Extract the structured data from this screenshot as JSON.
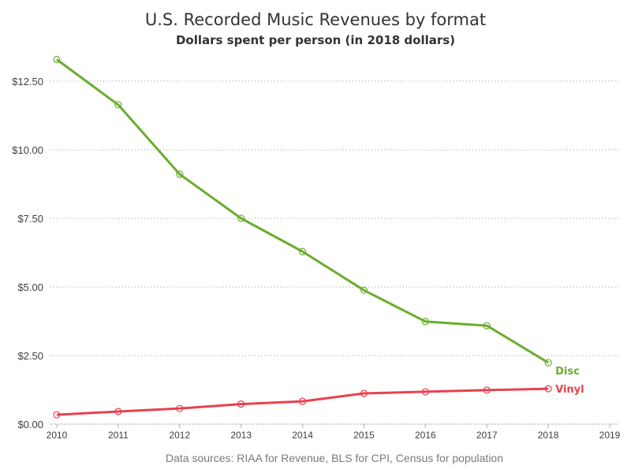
{
  "chart_data": {
    "type": "line",
    "title": "U.S. Recorded Music Revenues by format",
    "subtitle": "Dollars spent per person (in 2018 dollars)",
    "footnote": "Data sources: RIAA for Revenue, BLS for CPI, Census for population",
    "xlabel": "",
    "ylabel": "",
    "x": [
      2010,
      2011,
      2012,
      2013,
      2014,
      2015,
      2016,
      2017,
      2018
    ],
    "xlim": [
      2010,
      2019
    ],
    "xticks": [
      "2010",
      "2011",
      "2012",
      "2013",
      "2014",
      "2015",
      "2016",
      "2017",
      "2018",
      "2019"
    ],
    "ylim": [
      0,
      13.3
    ],
    "yticks": [
      {
        "value": 0,
        "label": "$0.00"
      },
      {
        "value": 2.5,
        "label": "$2.50"
      },
      {
        "value": 5,
        "label": "$5.00"
      },
      {
        "value": 7.5,
        "label": "$7.50"
      },
      {
        "value": 10,
        "label": "$10.00"
      },
      {
        "value": 12.5,
        "label": "$12.50"
      }
    ],
    "grid": "horizontal-dotted",
    "legend": "inline-end-labels",
    "series": [
      {
        "name": "Disc",
        "color": "#6aad2e",
        "values": [
          13.29,
          11.64,
          9.11,
          7.5,
          6.29,
          4.88,
          3.74,
          3.59,
          2.24
        ]
      },
      {
        "name": "Vinyl",
        "color": "#e8414f",
        "values": [
          0.34,
          0.46,
          0.57,
          0.73,
          0.83,
          1.12,
          1.18,
          1.24,
          1.29
        ]
      }
    ]
  }
}
